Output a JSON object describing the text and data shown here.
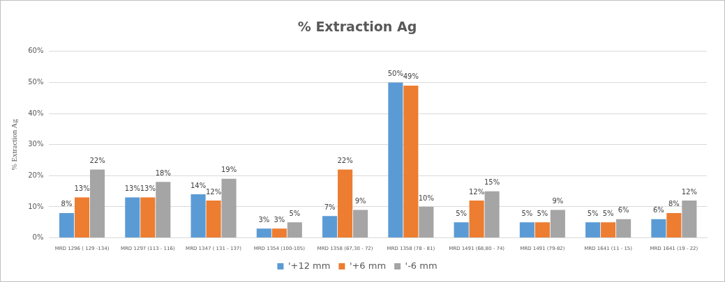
{
  "chart_data": {
    "type": "bar",
    "title": "% Extraction Ag",
    "ylabel": "% Extraction Ag",
    "categories": [
      "MRD 1296 ( 129 -134)",
      "MRD 1297 (113 - 116)",
      "MRD 1347 ( 131 - 137)",
      "MRD 1354 (100-105)",
      "MRD 1358 (67,30 - 72)",
      "MRD 1358 (78 - 81)",
      "MRD 1491 (68,80 - 74)",
      "MRD 1491 (79-82)",
      "MRD 1641 (11 - 15)",
      "MRD 1641 (19 - 22)"
    ],
    "series": [
      {
        "name": "'+12 mm",
        "color": "#5b9bd5",
        "values": [
          8,
          13,
          14,
          3,
          7,
          50,
          5,
          5,
          5,
          6
        ],
        "value_labels": [
          "8%",
          "13%",
          "14%",
          "3%",
          "7%",
          "50%",
          "5%",
          "5%",
          "5%",
          "6%"
        ]
      },
      {
        "name": "'+6 mm",
        "color": "#ed7d31",
        "values": [
          13,
          13,
          12,
          3,
          22,
          49,
          12,
          5,
          5,
          8
        ],
        "value_labels": [
          "13%",
          "13%",
          "12%",
          "3%",
          "22%",
          "49%",
          "12%",
          "5%",
          "5%",
          "8%"
        ]
      },
      {
        "name": "'-6 mm",
        "color": "#a5a5a5",
        "values": [
          22,
          18,
          19,
          5,
          9,
          10,
          15,
          9,
          6,
          12
        ],
        "value_labels": [
          "22%",
          "18%",
          "19%",
          "5%",
          "9%",
          "10%",
          "15%",
          "9%",
          "6%",
          "12%"
        ]
      }
    ],
    "ylim": [
      0,
      60
    ],
    "yticks": [
      {
        "value": 0,
        "label": "0%"
      },
      {
        "value": 10,
        "label": "10%"
      },
      {
        "value": 20,
        "label": "20%"
      },
      {
        "value": 30,
        "label": "30%"
      },
      {
        "value": 40,
        "label": "40%"
      },
      {
        "value": 50,
        "label": "50%"
      },
      {
        "value": 60,
        "label": "60%"
      }
    ],
    "grid": "y",
    "legend": "bottom"
  }
}
